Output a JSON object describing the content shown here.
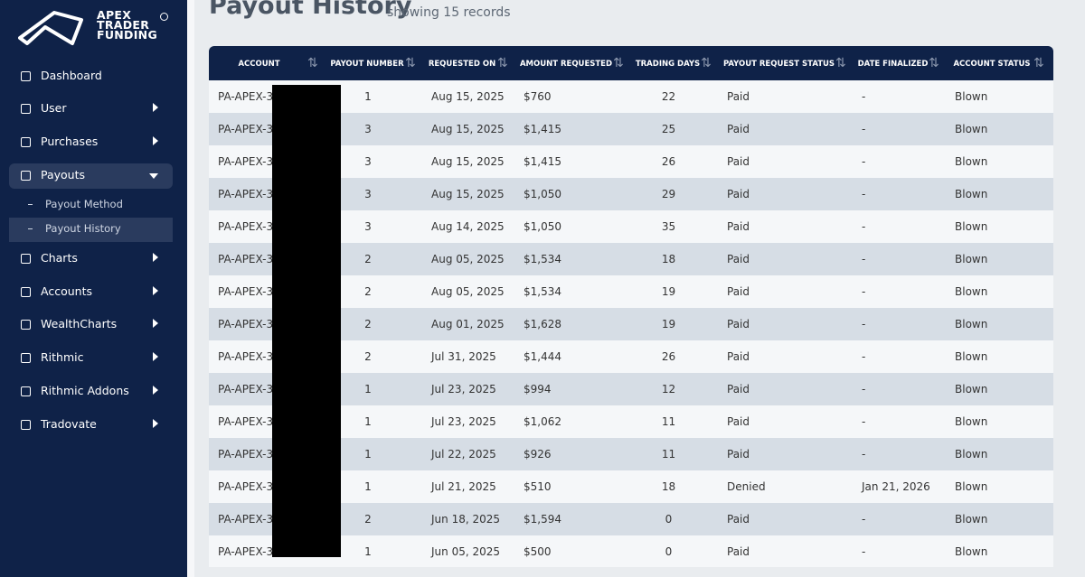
{
  "sidebar": {
    "logo": [
      "APEX",
      "TRADER",
      "FUNDING"
    ],
    "nav": [
      "Dashboard",
      "User",
      "Purchases",
      "Payouts",
      "Charts",
      "Accounts",
      "WealthCharts",
      "Rithmic",
      "Rithmic Addons",
      "Tradovate"
    ],
    "submenu": [
      "Payout Method",
      "Payout History"
    ]
  },
  "header": {
    "title": "Payout History",
    "subtitle": "showing 15 records"
  },
  "table": {
    "columns": [
      "ACCOUNT",
      "PAYOUT NUMBER",
      "REQUESTED ON",
      "AMOUNT REQUESTED",
      "TRADING DAYS",
      "PAYOUT REQUEST STATUS",
      "DATE FINALIZED",
      "ACCOUNT STATUS"
    ],
    "rows": [
      [
        "PA-APEX-3",
        1,
        "Aug 15, 2025",
        "$760",
        22,
        "Paid",
        "-",
        "Blown"
      ],
      [
        "PA-APEX-3",
        3,
        "Aug 15, 2025",
        "$1,415",
        25,
        "Paid",
        "-",
        "Blown"
      ],
      [
        "PA-APEX-3",
        3,
        "Aug 15, 2025",
        "$1,415",
        26,
        "Paid",
        "-",
        "Blown"
      ],
      [
        "PA-APEX-3",
        3,
        "Aug 15, 2025",
        "$1,050",
        29,
        "Paid",
        "-",
        "Blown"
      ],
      [
        "PA-APEX-3",
        3,
        "Aug 14, 2025",
        "$1,050",
        35,
        "Paid",
        "-",
        "Blown"
      ],
      [
        "PA-APEX-3",
        2,
        "Aug 05, 2025",
        "$1,534",
        18,
        "Paid",
        "-",
        "Blown"
      ],
      [
        "PA-APEX-3",
        2,
        "Aug 05, 2025",
        "$1,534",
        19,
        "Paid",
        "-",
        "Blown"
      ],
      [
        "PA-APEX-3",
        2,
        "Aug 01, 2025",
        "$1,628",
        19,
        "Paid",
        "-",
        "Blown"
      ],
      [
        "PA-APEX-3",
        2,
        "Jul 31, 2025",
        "$1,444",
        26,
        "Paid",
        "-",
        "Blown"
      ],
      [
        "PA-APEX-3",
        1,
        "Jul 23, 2025",
        "$994",
        12,
        "Paid",
        "-",
        "Blown"
      ],
      [
        "PA-APEX-3",
        1,
        "Jul 23, 2025",
        "$1,062",
        11,
        "Paid",
        "-",
        "Blown"
      ],
      [
        "PA-APEX-3",
        1,
        "Jul 22, 2025",
        "$926",
        11,
        "Paid",
        "-",
        "Blown"
      ],
      [
        "PA-APEX-3",
        1,
        "Jul 21, 2025",
        "$510",
        18,
        "Denied",
        "Jan 21, 2026",
        "Blown"
      ],
      [
        "PA-APEX-3",
        2,
        "Jun 18, 2025",
        "$1,594",
        0,
        "Paid",
        "-",
        "Blown"
      ],
      [
        "PA-APEX-3",
        1,
        "Jun 05, 2025",
        "$500",
        0,
        "Paid",
        "-",
        "Blown"
      ]
    ]
  }
}
